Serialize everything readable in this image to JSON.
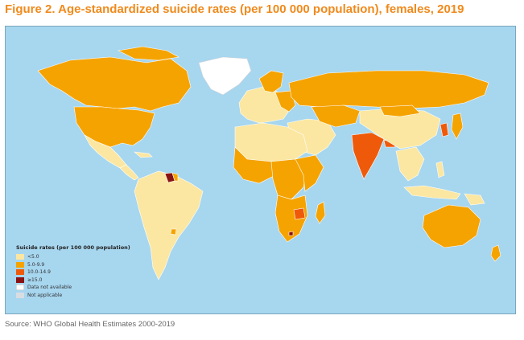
{
  "title": "Figure 2. Age-standardized suicide rates (per 100 000 population), females, 2019",
  "source": "Source: WHO Global Health Estimates 2000-2019",
  "legend": {
    "title": "Suicide rates (per 100 000 population)",
    "items": [
      {
        "label": "<5.0",
        "color": "#fbe7a1"
      },
      {
        "label": "5.0-9.9",
        "color": "#f5a300"
      },
      {
        "label": "10.0-14.9",
        "color": "#ef5a0a"
      },
      {
        "label": "≥15.0",
        "color": "#8a1212"
      },
      {
        "label": "Data not available",
        "color": "#ffffff"
      },
      {
        "label": "Not applicable",
        "color": "#d8dde2"
      }
    ]
  },
  "colors": {
    "ocean": "#a7d6ef",
    "frame_border": "#7aa7bf",
    "title": "#f08a1c",
    "lt5": "#fbe7a1",
    "r5_9": "#f5a300",
    "r10_14": "#ef5a0a",
    "ge15": "#8a1212",
    "na": "#ffffff",
    "not_applicable": "#d8dde2"
  }
}
